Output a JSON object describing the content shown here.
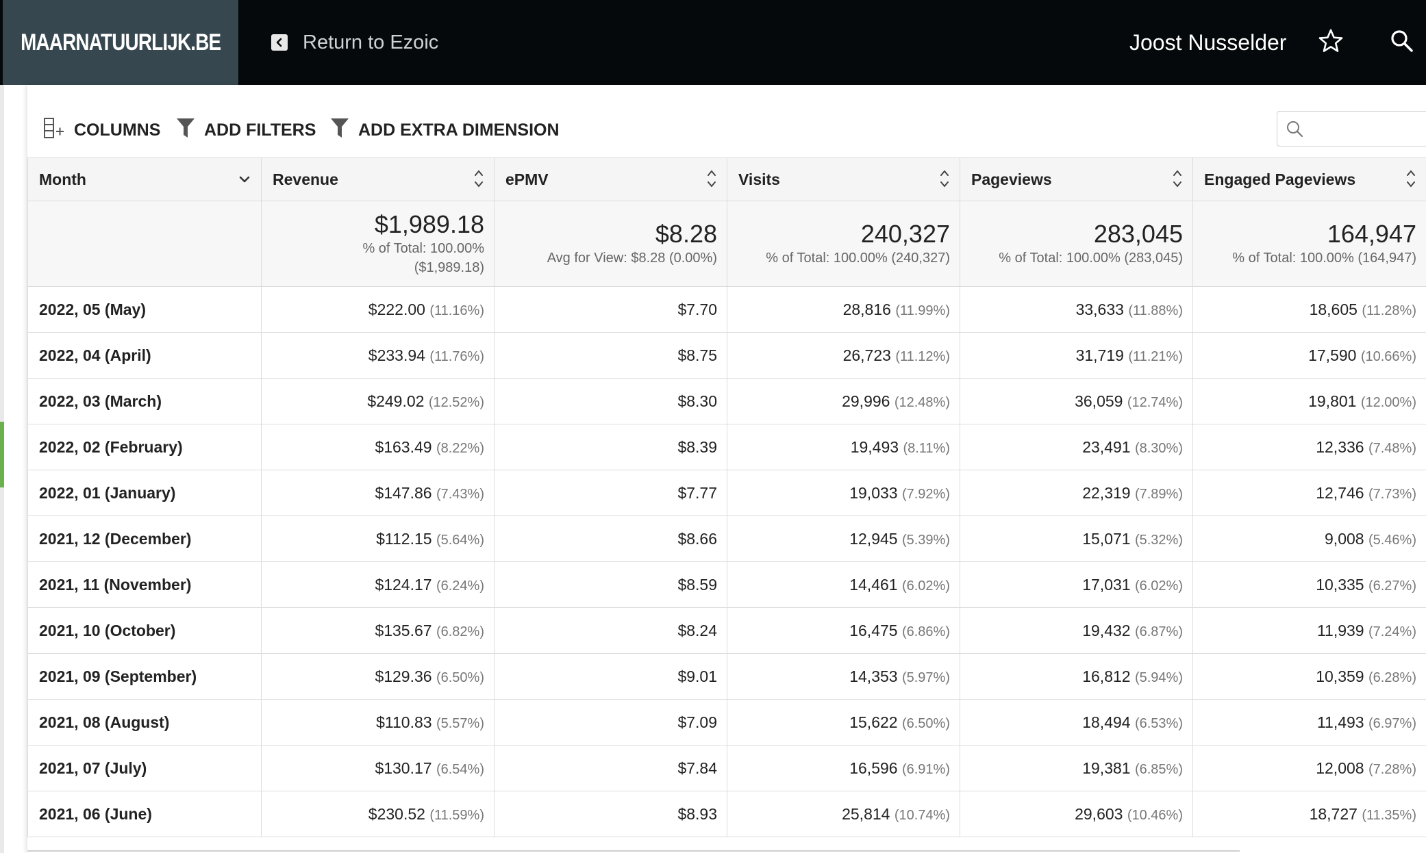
{
  "header": {
    "brand": "MAARNATUURLIJK.BE",
    "return_label": "Return to Ezoic",
    "user_name": "Joost Nusselder"
  },
  "toolbar": {
    "columns_label": "COLUMNS",
    "filters_label": "ADD FILTERS",
    "dimension_label": "ADD EXTRA DIMENSION",
    "search_value": ""
  },
  "table": {
    "columns": [
      "Month",
      "Revenue",
      "ePMV",
      "Visits",
      "Pageviews",
      "Engaged Pageviews"
    ],
    "totals": {
      "revenue": {
        "value": "$1,989.18",
        "sub1": "% of Total: 100.00%",
        "sub2": "($1,989.18)"
      },
      "epmv": {
        "value": "$8.28",
        "sub": "Avg for View: $8.28 (0.00%)"
      },
      "visits": {
        "value": "240,327",
        "sub": "% of Total: 100.00% (240,327)"
      },
      "pageviews": {
        "value": "283,045",
        "sub": "% of Total: 100.00% (283,045)"
      },
      "engaged": {
        "value": "164,947",
        "sub": "% of Total: 100.00% (164,947)"
      }
    },
    "rows": [
      {
        "month": "2022, 05 (May)",
        "revenue": "$222.00",
        "revenue_pct": "(11.16%)",
        "epmv": "$7.70",
        "visits": "28,816",
        "visits_pct": "(11.99%)",
        "pageviews": "33,633",
        "pageviews_pct": "(11.88%)",
        "engaged": "18,605",
        "engaged_pct": "(11.28%)"
      },
      {
        "month": "2022, 04 (April)",
        "revenue": "$233.94",
        "revenue_pct": "(11.76%)",
        "epmv": "$8.75",
        "visits": "26,723",
        "visits_pct": "(11.12%)",
        "pageviews": "31,719",
        "pageviews_pct": "(11.21%)",
        "engaged": "17,590",
        "engaged_pct": "(10.66%)"
      },
      {
        "month": "2022, 03 (March)",
        "revenue": "$249.02",
        "revenue_pct": "(12.52%)",
        "epmv": "$8.30",
        "visits": "29,996",
        "visits_pct": "(12.48%)",
        "pageviews": "36,059",
        "pageviews_pct": "(12.74%)",
        "engaged": "19,801",
        "engaged_pct": "(12.00%)"
      },
      {
        "month": "2022, 02 (February)",
        "revenue": "$163.49",
        "revenue_pct": "(8.22%)",
        "epmv": "$8.39",
        "visits": "19,493",
        "visits_pct": "(8.11%)",
        "pageviews": "23,491",
        "pageviews_pct": "(8.30%)",
        "engaged": "12,336",
        "engaged_pct": "(7.48%)"
      },
      {
        "month": "2022, 01 (January)",
        "revenue": "$147.86",
        "revenue_pct": "(7.43%)",
        "epmv": "$7.77",
        "visits": "19,033",
        "visits_pct": "(7.92%)",
        "pageviews": "22,319",
        "pageviews_pct": "(7.89%)",
        "engaged": "12,746",
        "engaged_pct": "(7.73%)"
      },
      {
        "month": "2021, 12 (December)",
        "revenue": "$112.15",
        "revenue_pct": "(5.64%)",
        "epmv": "$8.66",
        "visits": "12,945",
        "visits_pct": "(5.39%)",
        "pageviews": "15,071",
        "pageviews_pct": "(5.32%)",
        "engaged": "9,008",
        "engaged_pct": "(5.46%)"
      },
      {
        "month": "2021, 11 (November)",
        "revenue": "$124.17",
        "revenue_pct": "(6.24%)",
        "epmv": "$8.59",
        "visits": "14,461",
        "visits_pct": "(6.02%)",
        "pageviews": "17,031",
        "pageviews_pct": "(6.02%)",
        "engaged": "10,335",
        "engaged_pct": "(6.27%)"
      },
      {
        "month": "2021, 10 (October)",
        "revenue": "$135.67",
        "revenue_pct": "(6.82%)",
        "epmv": "$8.24",
        "visits": "16,475",
        "visits_pct": "(6.86%)",
        "pageviews": "19,432",
        "pageviews_pct": "(6.87%)",
        "engaged": "11,939",
        "engaged_pct": "(7.24%)"
      },
      {
        "month": "2021, 09 (September)",
        "revenue": "$129.36",
        "revenue_pct": "(6.50%)",
        "epmv": "$9.01",
        "visits": "14,353",
        "visits_pct": "(5.97%)",
        "pageviews": "16,812",
        "pageviews_pct": "(5.94%)",
        "engaged": "10,359",
        "engaged_pct": "(6.28%)"
      },
      {
        "month": "2021, 08 (August)",
        "revenue": "$110.83",
        "revenue_pct": "(5.57%)",
        "epmv": "$7.09",
        "visits": "15,622",
        "visits_pct": "(6.50%)",
        "pageviews": "18,494",
        "pageviews_pct": "(6.53%)",
        "engaged": "11,493",
        "engaged_pct": "(6.97%)"
      },
      {
        "month": "2021, 07 (July)",
        "revenue": "$130.17",
        "revenue_pct": "(6.54%)",
        "epmv": "$7.84",
        "visits": "16,596",
        "visits_pct": "(6.91%)",
        "pageviews": "19,381",
        "pageviews_pct": "(6.85%)",
        "engaged": "12,008",
        "engaged_pct": "(7.28%)"
      },
      {
        "month": "2021, 06 (June)",
        "revenue": "$230.52",
        "revenue_pct": "(11.59%)",
        "epmv": "$8.93",
        "visits": "25,814",
        "visits_pct": "(10.74%)",
        "pageviews": "29,603",
        "pageviews_pct": "(10.46%)",
        "engaged": "18,727",
        "engaged_pct": "(11.35%)"
      }
    ]
  },
  "colors": {
    "topbar": "#05090b",
    "brand_bg": "#37474f",
    "accent_green": "#6ab04c"
  },
  "icons": [
    "back-arrow-icon",
    "star-icon",
    "search-icon",
    "columns-icon",
    "filter-icon",
    "sort-icon",
    "chevron-down-icon"
  ]
}
